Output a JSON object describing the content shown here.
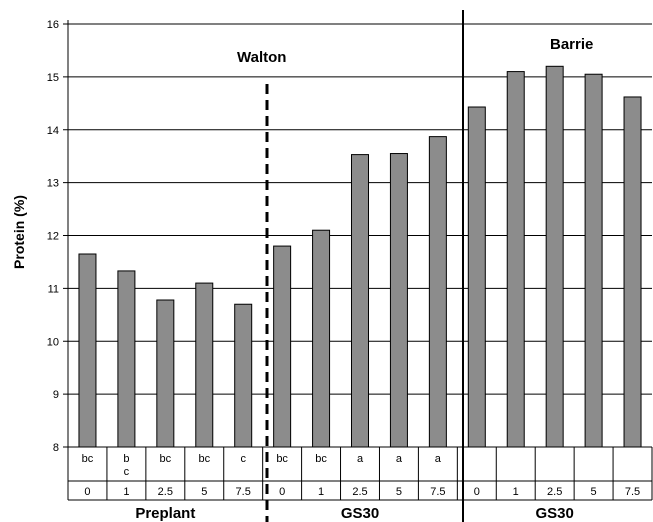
{
  "chart_data": {
    "type": "bar",
    "ylabel": "Protein (%)",
    "ylim": [
      8,
      16
    ],
    "yticks": [
      "8",
      "9",
      "10",
      "11",
      "12",
      "13",
      "14",
      "15",
      "16"
    ],
    "grid": true,
    "bar_color": "#8c8c8c",
    "categories": [
      "0",
      "1",
      "2.5",
      "5",
      "7.5",
      "0",
      "1",
      "2.5",
      "5",
      "7.5",
      "0",
      "1",
      "2.5",
      "5",
      "7.5"
    ],
    "values": [
      11.65,
      11.33,
      10.78,
      11.1,
      10.7,
      11.8,
      12.1,
      13.53,
      13.55,
      13.87,
      14.43,
      15.1,
      15.2,
      15.05,
      14.62
    ],
    "letters": [
      "bc",
      "b\nc",
      "bc",
      "bc",
      "c",
      "bc",
      "bc",
      "a",
      "a",
      "a",
      "",
      "",
      "",
      "",
      ""
    ],
    "groups": [
      {
        "label": "Preplant",
        "start": 0,
        "end": 4
      },
      {
        "label": "GS30",
        "start": 5,
        "end": 9
      },
      {
        "label": "GS30",
        "start": 10,
        "end": 14
      }
    ],
    "annotations": [
      "Walton",
      "Barrie"
    ]
  }
}
